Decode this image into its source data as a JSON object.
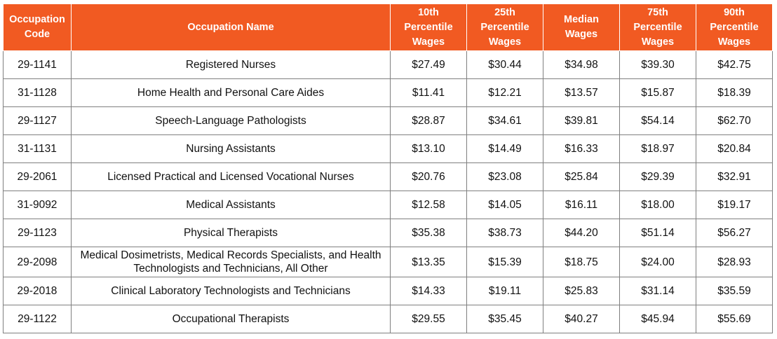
{
  "colors": {
    "header_bg": "#f15a22",
    "header_text": "#ffffff",
    "border": "#7f7f7f"
  },
  "headers": {
    "code": "Occupation Code",
    "name": "Occupation Name",
    "p10": "10th Percentile Wages",
    "p25": "25th Percentile Wages",
    "median": "Median Wages",
    "p75": "75th Percentile Wages",
    "p90": "90th Percentile Wages"
  },
  "rows": [
    {
      "code": "29-1141",
      "name": "Registered Nurses",
      "p10": "$27.49",
      "p25": "$30.44",
      "median": "$34.98",
      "p75": "$39.30",
      "p90": "$42.75"
    },
    {
      "code": "31-1128",
      "name": "Home Health and Personal Care Aides",
      "p10": "$11.41",
      "p25": "$12.21",
      "median": "$13.57",
      "p75": "$15.87",
      "p90": "$18.39"
    },
    {
      "code": "29-1127",
      "name": "Speech-Language Pathologists",
      "p10": "$28.87",
      "p25": "$34.61",
      "median": "$39.81",
      "p75": "$54.14",
      "p90": "$62.70"
    },
    {
      "code": "31-1131",
      "name": "Nursing Assistants",
      "p10": "$13.10",
      "p25": "$14.49",
      "median": "$16.33",
      "p75": "$18.97",
      "p90": "$20.84"
    },
    {
      "code": "29-2061",
      "name": "Licensed Practical and Licensed Vocational Nurses",
      "p10": "$20.76",
      "p25": "$23.08",
      "median": "$25.84",
      "p75": "$29.39",
      "p90": "$32.91"
    },
    {
      "code": "31-9092",
      "name": "Medical Assistants",
      "p10": "$12.58",
      "p25": "$14.05",
      "median": "$16.11",
      "p75": "$18.00",
      "p90": "$19.17"
    },
    {
      "code": "29-1123",
      "name": "Physical Therapists",
      "p10": "$35.38",
      "p25": "$38.73",
      "median": "$44.20",
      "p75": "$51.14",
      "p90": "$56.27"
    },
    {
      "code": "29-2098",
      "name": "Medical Dosimetrists, Medical Records Specialists, and Health Technologists and Technicians, All Other",
      "p10": "$13.35",
      "p25": "$15.39",
      "median": "$18.75",
      "p75": "$24.00",
      "p90": "$28.93"
    },
    {
      "code": "29-2018",
      "name": "Clinical Laboratory Technologists and Technicians",
      "p10": "$14.33",
      "p25": "$19.11",
      "median": "$25.83",
      "p75": "$31.14",
      "p90": "$35.59"
    },
    {
      "code": "29-1122",
      "name": "Occupational Therapists",
      "p10": "$29.55",
      "p25": "$35.45",
      "median": "$40.27",
      "p75": "$45.94",
      "p90": "$55.69"
    }
  ]
}
